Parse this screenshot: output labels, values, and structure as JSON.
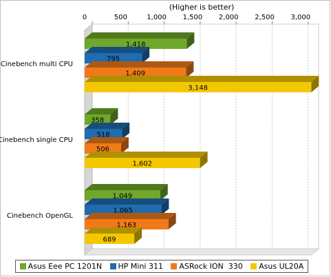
{
  "chart_data": {
    "type": "bar",
    "orientation": "horizontal",
    "title": "(Higher is better)",
    "categories": [
      "Cinebench multi CPU",
      "Cinebench single CPU",
      "Cinebench OpenGL"
    ],
    "series": [
      {
        "name": "Asus Eee PC 1201N",
        "color": "#6fa82a",
        "values": [
          1418,
          358,
          1049
        ],
        "labels": [
          "1,418",
          "358",
          "1,049"
        ]
      },
      {
        "name": "HP Mini 311",
        "color": "#1f6cb0",
        "values": [
          795,
          518,
          1065
        ],
        "labels": [
          "795",
          "518",
          "1,065"
        ]
      },
      {
        "name": "ASRock ION  330",
        "color": "#f07a1a",
        "values": [
          1409,
          506,
          1163
        ],
        "labels": [
          "1,409",
          "506",
          "1,163"
        ]
      },
      {
        "name": "Asus UL20A",
        "color": "#f4c800",
        "values": [
          3148,
          1602,
          689
        ],
        "labels": [
          "3,148",
          "1,602",
          "689"
        ]
      }
    ],
    "xlim": [
      0,
      3250
    ],
    "ticks": [
      0,
      500,
      1000,
      1500,
      2000,
      2500,
      3000
    ],
    "tick_labels": [
      "0",
      "500",
      "1,000",
      "1,500",
      "2,000",
      "2,500",
      "3,000"
    ],
    "grid": true,
    "legend_position": "bottom"
  }
}
